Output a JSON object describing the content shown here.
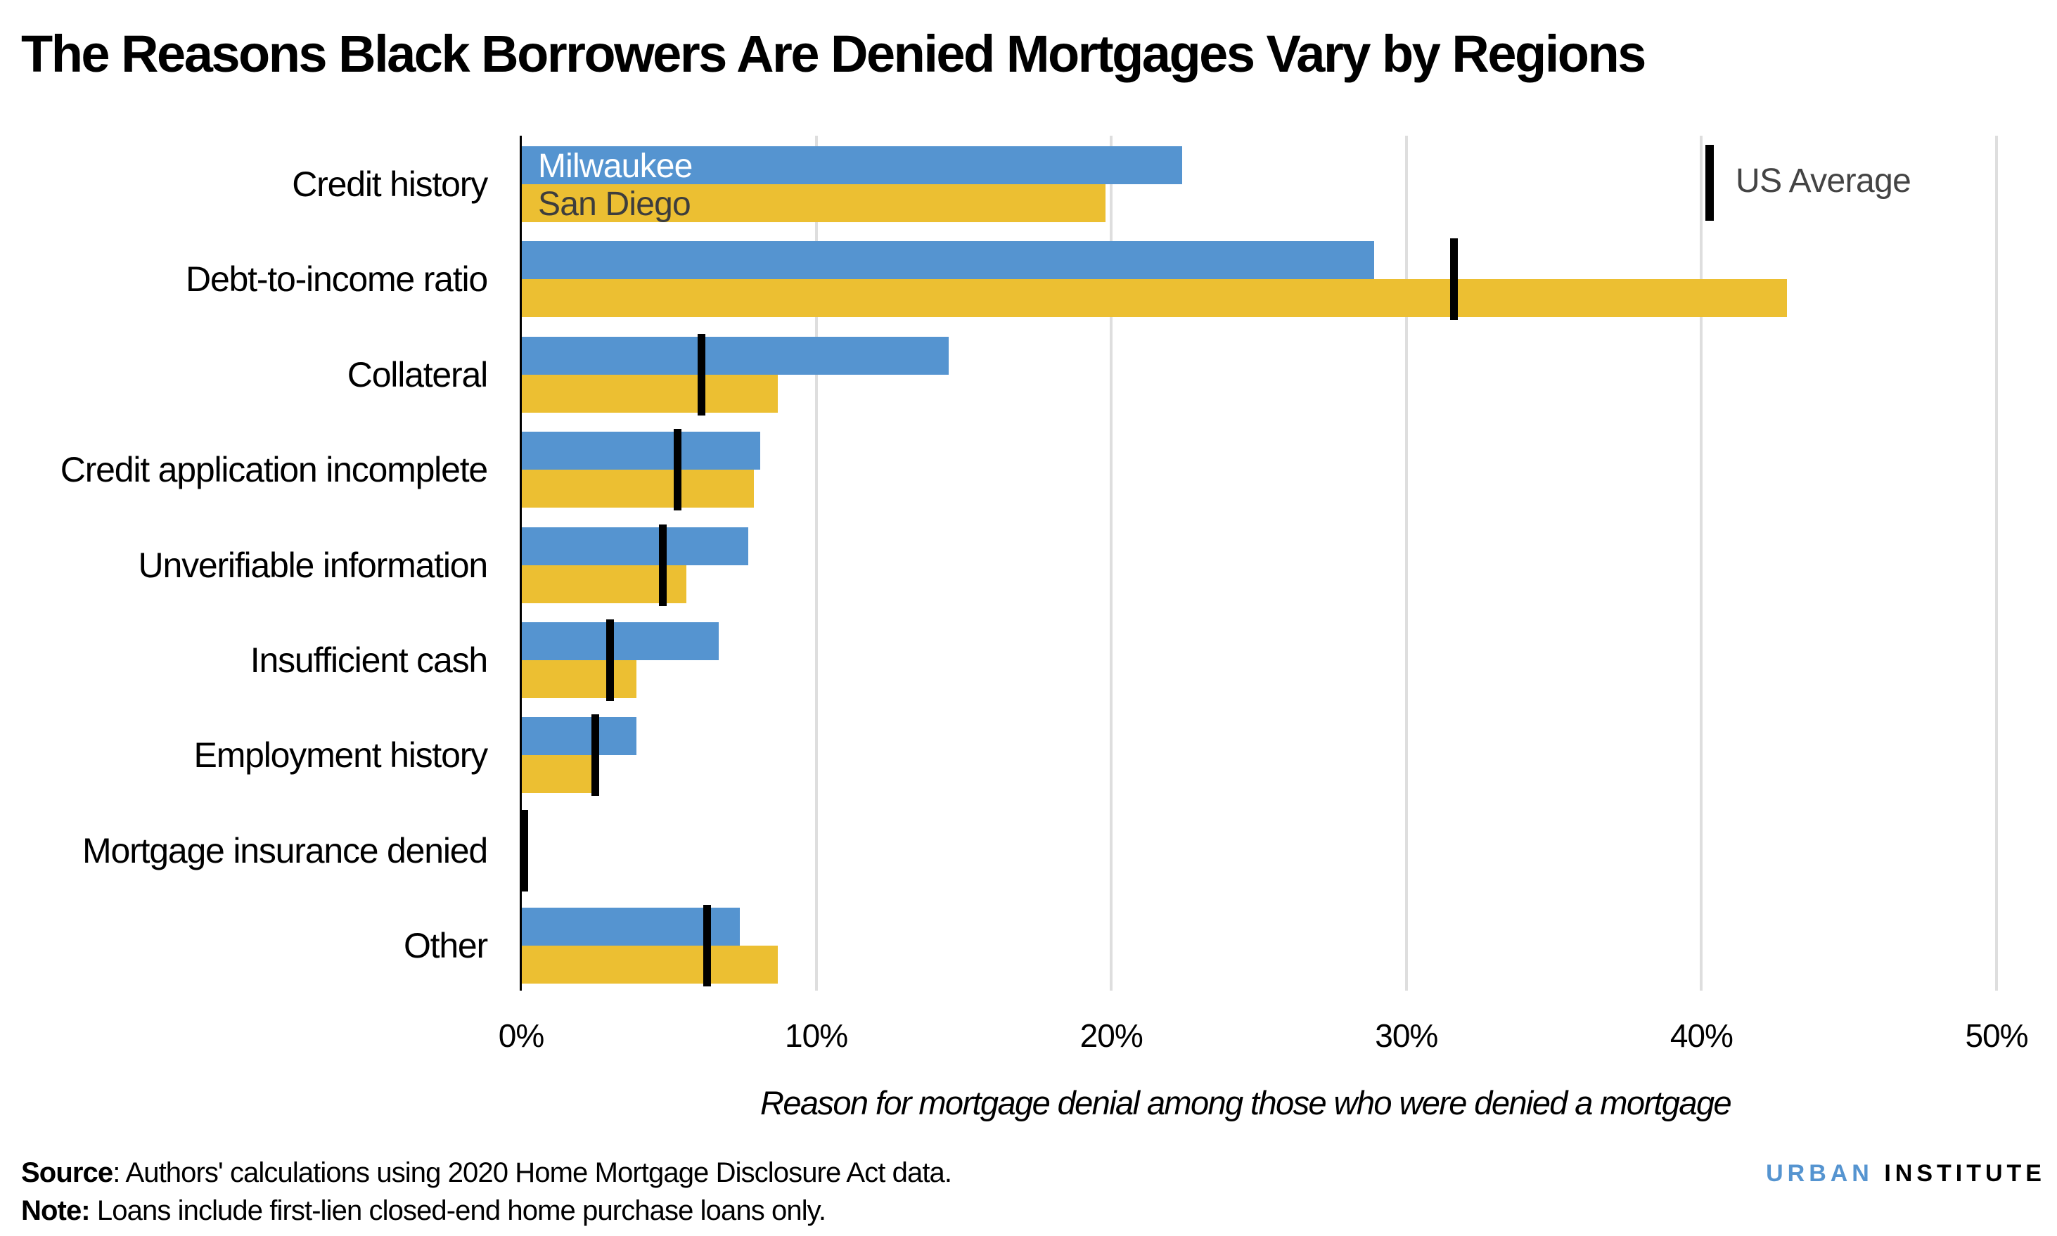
{
  "title": "The Reasons Black Borrowers Are Denied Mortgages Vary by Regions",
  "legend": {
    "series_a": "Milwaukee",
    "series_b": "San Diego",
    "marker": "US Average"
  },
  "colors": {
    "milwaukee": "#5594d0",
    "san_diego": "#ecbf32",
    "us_average": "#000000",
    "gridline": "#dedede",
    "brand_blue": "#5594d0"
  },
  "x_axis": {
    "ticks": [
      "0%",
      "10%",
      "20%",
      "30%",
      "40%",
      "50%"
    ],
    "title": "Reason for mortgage denial among those who were denied a mortgage"
  },
  "footer": {
    "source_label": "Source",
    "source_text": ": Authors' calculations using 2020 Home Mortgage Disclosure Act data.",
    "note_label": "Note:",
    "note_text": " Loans include first-lien closed-end home purchase loans only.",
    "brand_part1": "URBAN",
    "brand_part2": "INSTITUTE"
  },
  "chart_data": {
    "type": "bar",
    "orientation": "horizontal",
    "title": "The Reasons Black Borrowers Are Denied Mortgages Vary by Regions",
    "xlabel": "Reason for mortgage denial among those who were denied a mortgage",
    "ylabel": "",
    "xlim": [
      0,
      50
    ],
    "x_tick_labels": [
      "0%",
      "10%",
      "20%",
      "30%",
      "40%",
      "50%"
    ],
    "grid": "vertical",
    "legend_position": "in-plot (series labels inside first bars; US Average marker top-right)",
    "categories": [
      "Credit history",
      "Debt-to-income ratio",
      "Collateral",
      "Credit application incomplete",
      "Unverifiable information",
      "Insufficient cash",
      "Employment history",
      "Mortgage insurance denied",
      "Other"
    ],
    "series": [
      {
        "name": "Milwaukee",
        "values": [
          22.4,
          28.9,
          14.5,
          8.1,
          7.7,
          6.7,
          3.9,
          0.2,
          7.4
        ]
      },
      {
        "name": "San Diego",
        "values": [
          19.8,
          42.9,
          8.7,
          7.9,
          5.6,
          3.9,
          2.4,
          0.0,
          8.7
        ]
      },
      {
        "name": "US Average",
        "type": "marker",
        "values": [
          null,
          31.6,
          6.1,
          5.3,
          4.8,
          3.0,
          2.5,
          0.1,
          6.3
        ]
      }
    ],
    "unit": "%"
  }
}
